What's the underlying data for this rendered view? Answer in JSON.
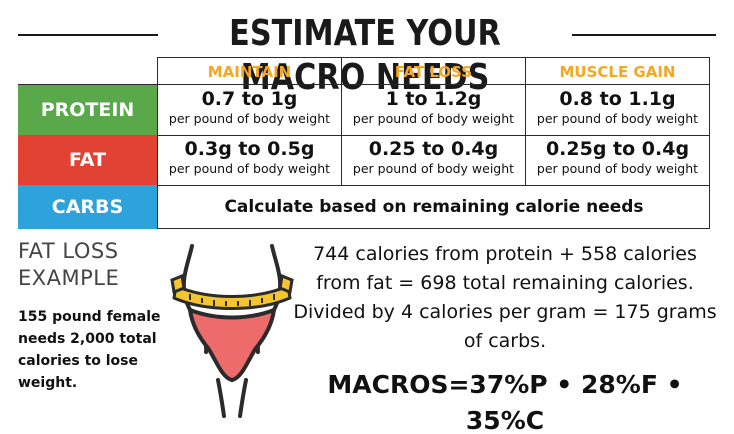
{
  "title": "ESTIMATE YOUR MACRO NEEDS",
  "columns": [
    "MAINTAIN",
    "FAT LOSS",
    "MUSCLE GAIN"
  ],
  "rows": [
    {
      "label": "PROTEIN",
      "cells": [
        {
          "value": "0.7 to 1g",
          "unit": "per pound of body weight"
        },
        {
          "value": "1 to 1.2g",
          "unit": "per pound of body weight"
        },
        {
          "value": "0.8 to 1.1g",
          "unit": "per pound of body weight"
        }
      ]
    },
    {
      "label": "FAT",
      "cells": [
        {
          "value": "0.3g to 0.5g",
          "unit": "per pound of body weight"
        },
        {
          "value": "0.25 to 0.4g",
          "unit": "per pound of body weight"
        },
        {
          "value": "0.25g to 0.4g",
          "unit": "per pound of body weight"
        }
      ]
    },
    {
      "label": "CARBS",
      "text": "Calculate based on remaining calorie needs"
    }
  ],
  "example": {
    "title_line1": "FAT LOSS",
    "title_line2": "EXAMPLE",
    "description": "155 pound female needs 2,000 total calories to lose weight.",
    "calculation_line1": "744 calories from protein + 558 calories",
    "calculation_line2": "from fat = 698 total remaining calories.",
    "calculation_line3": "Divided by 4 calories per gram  = 175 grams",
    "calculation_line4": "of carbs.",
    "macros": "MACROS=37%P • 28%F • 35%C"
  },
  "icon": "body-measuring-tape-icon",
  "colors": {
    "protein": "#59a84a",
    "fat": "#e24234",
    "carbs": "#2ea2da",
    "column_header": "#f5a623",
    "underwear": "#ee6b6b",
    "tape": "#f5c531"
  }
}
